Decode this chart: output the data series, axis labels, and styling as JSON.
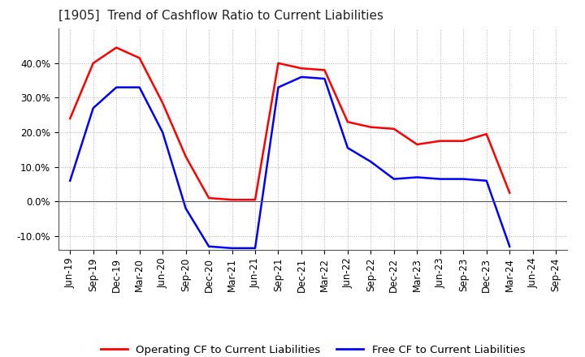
{
  "title": "[1905]  Trend of Cashflow Ratio to Current Liabilities",
  "ylim": [
    -0.14,
    0.5
  ],
  "yticks": [
    -0.1,
    0.0,
    0.1,
    0.2,
    0.3,
    0.4
  ],
  "ytick_labels": [
    "-10.0%",
    "0.0%",
    "10.0%",
    "20.0%",
    "30.0%",
    "40.0%"
  ],
  "x_labels": [
    "Jun-19",
    "Sep-19",
    "Dec-19",
    "Mar-20",
    "Jun-20",
    "Sep-20",
    "Dec-20",
    "Mar-21",
    "Jun-21",
    "Sep-21",
    "Dec-21",
    "Mar-22",
    "Jun-22",
    "Sep-22",
    "Dec-22",
    "Mar-23",
    "Jun-23",
    "Sep-23",
    "Dec-23",
    "Mar-24",
    "Jun-24",
    "Sep-24"
  ],
  "operating_cf": [
    0.24,
    0.4,
    0.445,
    0.415,
    0.285,
    0.13,
    0.01,
    0.005,
    0.005,
    0.4,
    0.385,
    0.38,
    0.23,
    0.215,
    0.21,
    0.165,
    0.175,
    0.175,
    0.195,
    0.025,
    null,
    null
  ],
  "free_cf": [
    0.06,
    0.27,
    0.33,
    0.33,
    0.2,
    -0.02,
    -0.13,
    -0.135,
    -0.135,
    0.33,
    0.36,
    0.355,
    0.155,
    0.115,
    0.065,
    0.07,
    0.065,
    0.065,
    0.06,
    -0.13,
    null,
    null
  ],
  "operating_color": "#ff0000",
  "free_color": "#0000ff",
  "background_color": "#ffffff",
  "grid_color": "#b0b0b0",
  "legend_labels": [
    "Operating CF to Current Liabilities",
    "Free CF to Current Liabilities"
  ],
  "title_fontsize": 11,
  "tick_fontsize": 8.5,
  "legend_fontsize": 9.5
}
